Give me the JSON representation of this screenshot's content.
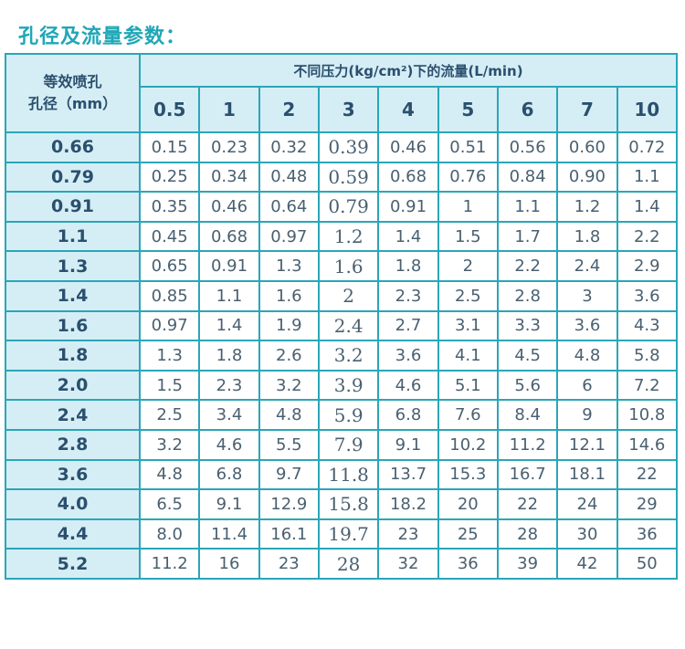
{
  "title": "孔径及流量参数：",
  "table": {
    "corner_label": [
      "等效喷孔",
      "孔径（mm）"
    ],
    "group_header": "不同压力(kg/cm²)下的流量(L/min)",
    "pressures": [
      "0.5",
      "1",
      "2",
      "3",
      "4",
      "5",
      "6",
      "7",
      "10"
    ],
    "rows": [
      {
        "d": "0.66",
        "v": [
          "0.15",
          "0.23",
          "0.32",
          "0.39",
          "0.46",
          "0.51",
          "0.56",
          "0.60",
          "0.72"
        ]
      },
      {
        "d": "0.79",
        "v": [
          "0.25",
          "0.34",
          "0.48",
          "0.59",
          "0.68",
          "0.76",
          "0.84",
          "0.90",
          "1.1"
        ]
      },
      {
        "d": "0.91",
        "v": [
          "0.35",
          "0.46",
          "0.64",
          "0.79",
          "0.91",
          "1",
          "1.1",
          "1.2",
          "1.4"
        ]
      },
      {
        "d": "1.1",
        "v": [
          "0.45",
          "0.68",
          "0.97",
          "1.2",
          "1.4",
          "1.5",
          "1.7",
          "1.8",
          "2.2"
        ]
      },
      {
        "d": "1.3",
        "v": [
          "0.65",
          "0.91",
          "1.3",
          "1.6",
          "1.8",
          "2",
          "2.2",
          "2.4",
          "2.9"
        ]
      },
      {
        "d": "1.4",
        "v": [
          "0.85",
          "1.1",
          "1.6",
          "2",
          "2.3",
          "2.5",
          "2.8",
          "3",
          "3.6"
        ]
      },
      {
        "d": "1.6",
        "v": [
          "0.97",
          "1.4",
          "1.9",
          "2.4",
          "2.7",
          "3.1",
          "3.3",
          "3.6",
          "4.3"
        ]
      },
      {
        "d": "1.8",
        "v": [
          "1.3",
          "1.8",
          "2.6",
          "3.2",
          "3.6",
          "4.1",
          "4.5",
          "4.8",
          "5.8"
        ]
      },
      {
        "d": "2.0",
        "v": [
          "1.5",
          "2.3",
          "3.2",
          "3.9",
          "4.6",
          "5.1",
          "5.6",
          "6",
          "7.2"
        ]
      },
      {
        "d": "2.4",
        "v": [
          "2.5",
          "3.4",
          "4.8",
          "5.9",
          "6.8",
          "7.6",
          "8.4",
          "9",
          "10.8"
        ]
      },
      {
        "d": "2.8",
        "v": [
          "3.2",
          "4.6",
          "5.5",
          "7.9",
          "9.1",
          "10.2",
          "11.2",
          "12.1",
          "14.6"
        ]
      },
      {
        "d": "3.6",
        "v": [
          "4.8",
          "6.8",
          "9.7",
          "11.8",
          "13.7",
          "15.3",
          "16.7",
          "18.1",
          "22"
        ]
      },
      {
        "d": "4.0",
        "v": [
          "6.5",
          "9.1",
          "12.9",
          "15.8",
          "18.2",
          "20",
          "22",
          "24",
          "29"
        ]
      },
      {
        "d": "4.4",
        "v": [
          "8.0",
          "11.4",
          "16.1",
          "19.7",
          "23",
          "25",
          "28",
          "30",
          "36"
        ]
      },
      {
        "d": "5.2",
        "v": [
          "11.2",
          "16",
          "23",
          "28",
          "32",
          "36",
          "39",
          "42",
          "50"
        ]
      }
    ]
  },
  "colors": {
    "accent": "#1fa7b6",
    "border": "#2aa6b8",
    "header_bg": "#d5eef5",
    "header_text": "#2b4f6e",
    "cell_text": "#4a6070"
  }
}
